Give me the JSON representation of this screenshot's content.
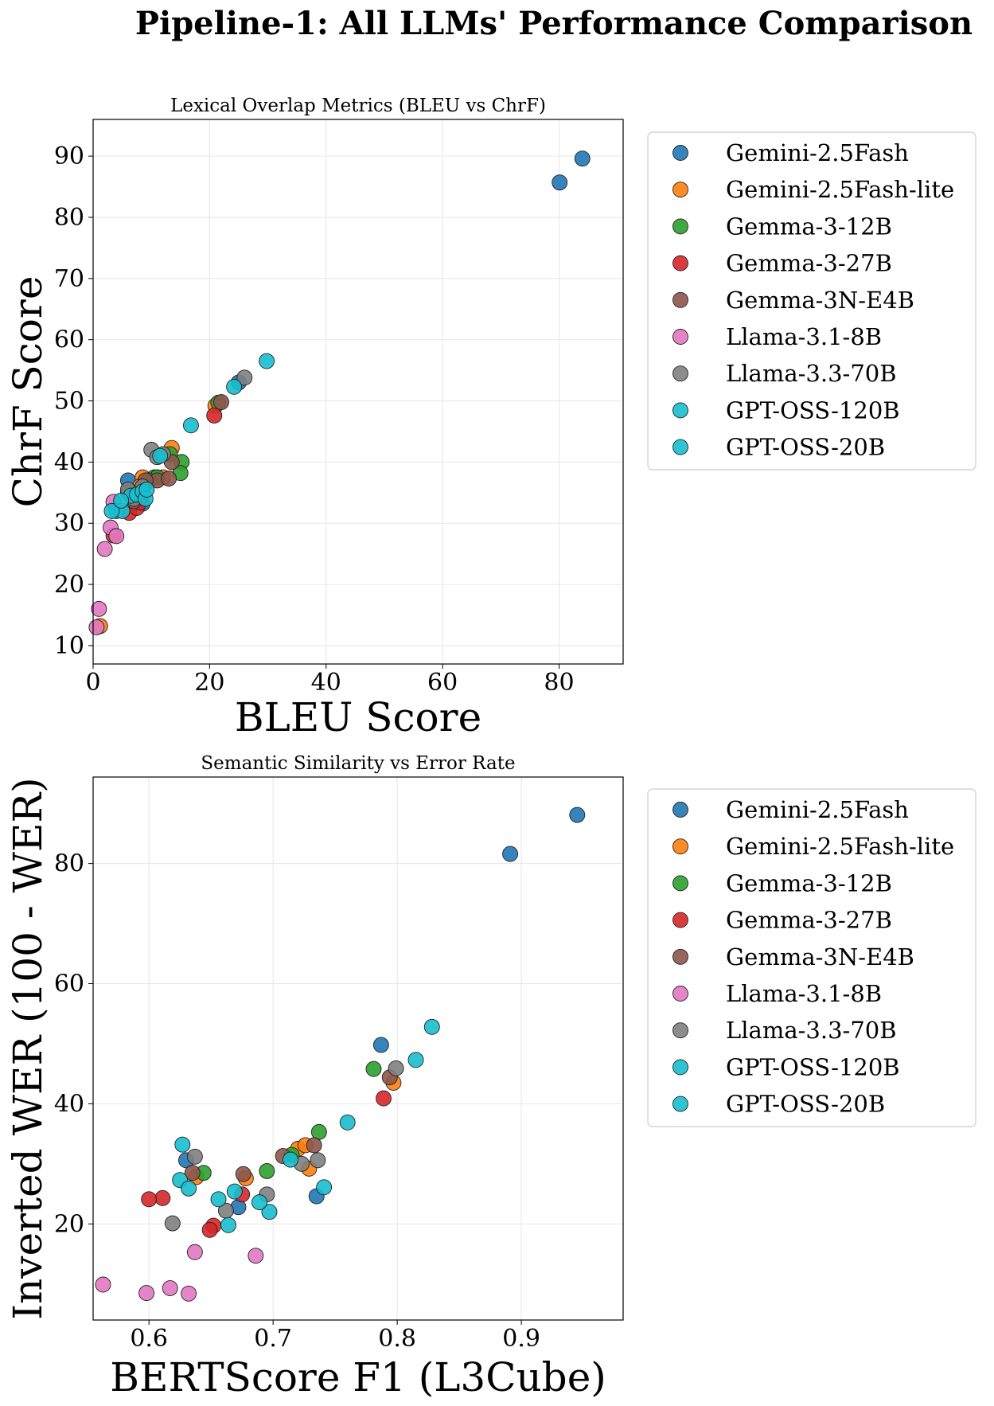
{
  "page_title": "Pipeline-1: All LLMs' Performance Comparison",
  "legend_labels": [
    "Gemini-2.5Fash",
    "Gemini-2.5Fash-lite",
    "Gemma-3-12B",
    "Gemma-3-27B",
    "Gemma-3N-E4B",
    "Llama-3.1-8B",
    "Llama-3.3-70B",
    "GPT-OSS-120B",
    "GPT-OSS-20B"
  ],
  "colors": {
    "Gemini-2.5Fash": "#1f77b4",
    "Gemini-2.5Fash-lite": "#ff7f0e",
    "Gemma-3-12B": "#2ca02c",
    "Gemma-3-27B": "#d62728",
    "Gemma-3N-E4B": "#8c564b",
    "Llama-3.1-8B": "#e377c2",
    "Llama-3.3-70B": "#7f7f7f",
    "GPT-OSS-120B": "#17becf",
    "GPT-OSS-20B": "#17becf"
  },
  "chart_data": [
    {
      "type": "scatter",
      "title": "Lexical Overlap Metrics (BLEU vs ChrF)",
      "xlabel": "BLEU Score",
      "ylabel": "ChrF Score",
      "xlim": [
        0,
        91
      ],
      "ylim": [
        7,
        96
      ],
      "xticks": [
        0,
        20,
        40,
        60,
        80
      ],
      "yticks": [
        10,
        20,
        30,
        40,
        50,
        60,
        70,
        80,
        90
      ],
      "grid": true,
      "legend_position": "outside-right",
      "series": [
        {
          "name": "Gemini-2.5Fash",
          "points": [
            [
              84,
              89.6
            ],
            [
              80.1,
              85.7
            ],
            [
              6,
              37
            ],
            [
              8.5,
              33.2
            ],
            [
              25,
              53
            ],
            [
              11,
              37.5
            ],
            [
              7,
              35
            ],
            [
              9,
              36.5
            ]
          ]
        },
        {
          "name": "Gemini-2.5Fash-lite",
          "points": [
            [
              1.2,
              13.2
            ],
            [
              13.5,
              42.3
            ],
            [
              8.5,
              37.5
            ],
            [
              21,
              49.2
            ],
            [
              6.5,
              34.5
            ],
            [
              8,
              36
            ],
            [
              12,
              37.5
            ]
          ]
        },
        {
          "name": "Gemma-3-12B",
          "points": [
            [
              15.2,
              40
            ],
            [
              15,
              38.2
            ],
            [
              13.2,
              41.3
            ],
            [
              10.5,
              37.5
            ],
            [
              21.5,
              49.7
            ],
            [
              11,
              37.5
            ],
            [
              9.5,
              37
            ]
          ]
        },
        {
          "name": "Gemma-3-27B",
          "points": [
            [
              20.8,
              47.6
            ],
            [
              6.2,
              31.7
            ],
            [
              7.5,
              32.5
            ],
            [
              8,
              33.4
            ],
            [
              3.5,
              28
            ]
          ]
        },
        {
          "name": "Gemma-3N-E4B",
          "points": [
            [
              22,
              49.8
            ],
            [
              13.5,
              40
            ],
            [
              11,
              37
            ],
            [
              13,
              37.3
            ],
            [
              9,
              37
            ],
            [
              6,
              35
            ],
            [
              7,
              33.6
            ]
          ]
        },
        {
          "name": "Llama-3.1-8B",
          "points": [
            [
              1,
              16
            ],
            [
              0.6,
              13
            ],
            [
              2,
              25.8
            ],
            [
              3,
              29.3
            ],
            [
              3.5,
              33.5
            ],
            [
              4,
              27.9
            ]
          ]
        },
        {
          "name": "Llama-3.3-70B",
          "points": [
            [
              26,
              53.8
            ],
            [
              10,
              42
            ],
            [
              11,
              40.8
            ],
            [
              12,
              41.3
            ],
            [
              8.5,
              36
            ],
            [
              7,
              34
            ],
            [
              6,
              35.5
            ]
          ]
        },
        {
          "name": "GPT-OSS-120B",
          "points": [
            [
              29.8,
              56.5
            ],
            [
              16.8,
              46
            ],
            [
              24.2,
              52.3
            ],
            [
              11.5,
              41
            ],
            [
              6.5,
              34.5
            ],
            [
              4,
              32
            ],
            [
              5,
              32
            ]
          ]
        },
        {
          "name": "GPT-OSS-20B",
          "points": [
            [
              3.2,
              32
            ],
            [
              4.8,
              33.7
            ],
            [
              7.5,
              34.7
            ],
            [
              8.5,
              35.2
            ],
            [
              9,
              34
            ],
            [
              9.2,
              35.5
            ]
          ]
        }
      ]
    },
    {
      "type": "scatter",
      "title": "Semantic Similarity vs Error Rate",
      "xlabel": "BERTScore F1 (L3Cube)",
      "ylabel": "Inverted WER (100 - WER)",
      "xlim": [
        0.555,
        0.982
      ],
      "ylim": [
        4,
        94.4
      ],
      "xticks": [
        0.6,
        0.7,
        0.8,
        0.9
      ],
      "xtick_labels": [
        "0.6",
        "0.7",
        "0.8",
        "0.9"
      ],
      "yticks": [
        20,
        40,
        60,
        80
      ],
      "grid": true,
      "legend_position": "outside-right",
      "series": [
        {
          "name": "Gemini-2.5Fash",
          "points": [
            [
              0.945,
              88.1
            ],
            [
              0.891,
              81.6
            ],
            [
              0.787,
              49.8
            ],
            [
              0.735,
              24.6
            ],
            [
              0.672,
              22.8
            ],
            [
              0.63,
              30.6
            ]
          ]
        },
        {
          "name": "Gemini-2.5Fash-lite",
          "points": [
            [
              0.797,
              43.5
            ],
            [
              0.729,
              29.2
            ],
            [
              0.72,
              32.5
            ],
            [
              0.726,
              33.1
            ],
            [
              0.678,
              27.6
            ],
            [
              0.638,
              27.8
            ]
          ]
        },
        {
          "name": "Gemma-3-12B",
          "points": [
            [
              0.781,
              45.8
            ],
            [
              0.737,
              35.3
            ],
            [
              0.715,
              31.5
            ],
            [
              0.695,
              28.8
            ],
            [
              0.644,
              28.5
            ]
          ]
        },
        {
          "name": "Gemma-3-27B",
          "points": [
            [
              0.789,
              40.9
            ],
            [
              0.675,
              24.9
            ],
            [
              0.652,
              19.7
            ],
            [
              0.649,
              19
            ],
            [
              0.611,
              24.3
            ],
            [
              0.6,
              24.1
            ]
          ]
        },
        {
          "name": "Gemma-3N-E4B",
          "points": [
            [
              0.794,
              44.4
            ],
            [
              0.733,
              33.1
            ],
            [
              0.708,
              31.3
            ],
            [
              0.676,
              28.3
            ],
            [
              0.635,
              28.5
            ]
          ]
        },
        {
          "name": "Llama-3.1-8B",
          "points": [
            [
              0.563,
              9.9
            ],
            [
              0.598,
              8.5
            ],
            [
              0.617,
              9.3
            ],
            [
              0.632,
              8.4
            ],
            [
              0.637,
              15.3
            ],
            [
              0.686,
              14.7
            ]
          ]
        },
        {
          "name": "Llama-3.3-70B",
          "points": [
            [
              0.799,
              45.9
            ],
            [
              0.736,
              30.6
            ],
            [
              0.723,
              30
            ],
            [
              0.695,
              24.9
            ],
            [
              0.662,
              22.2
            ],
            [
              0.637,
              31.2
            ],
            [
              0.619,
              20.1
            ]
          ]
        },
        {
          "name": "GPT-OSS-120B",
          "points": [
            [
              0.828,
              52.8
            ],
            [
              0.815,
              47.3
            ],
            [
              0.76,
              36.9
            ],
            [
              0.741,
              26.1
            ],
            [
              0.714,
              30.7
            ],
            [
              0.697,
              22
            ],
            [
              0.689,
              23.6
            ],
            [
              0.669,
              25.4
            ]
          ]
        },
        {
          "name": "GPT-OSS-20B",
          "points": [
            [
              0.627,
              33.2
            ],
            [
              0.625,
              27.3
            ],
            [
              0.632,
              25.9
            ],
            [
              0.656,
              24.1
            ],
            [
              0.664,
              19.8
            ]
          ]
        }
      ]
    }
  ]
}
